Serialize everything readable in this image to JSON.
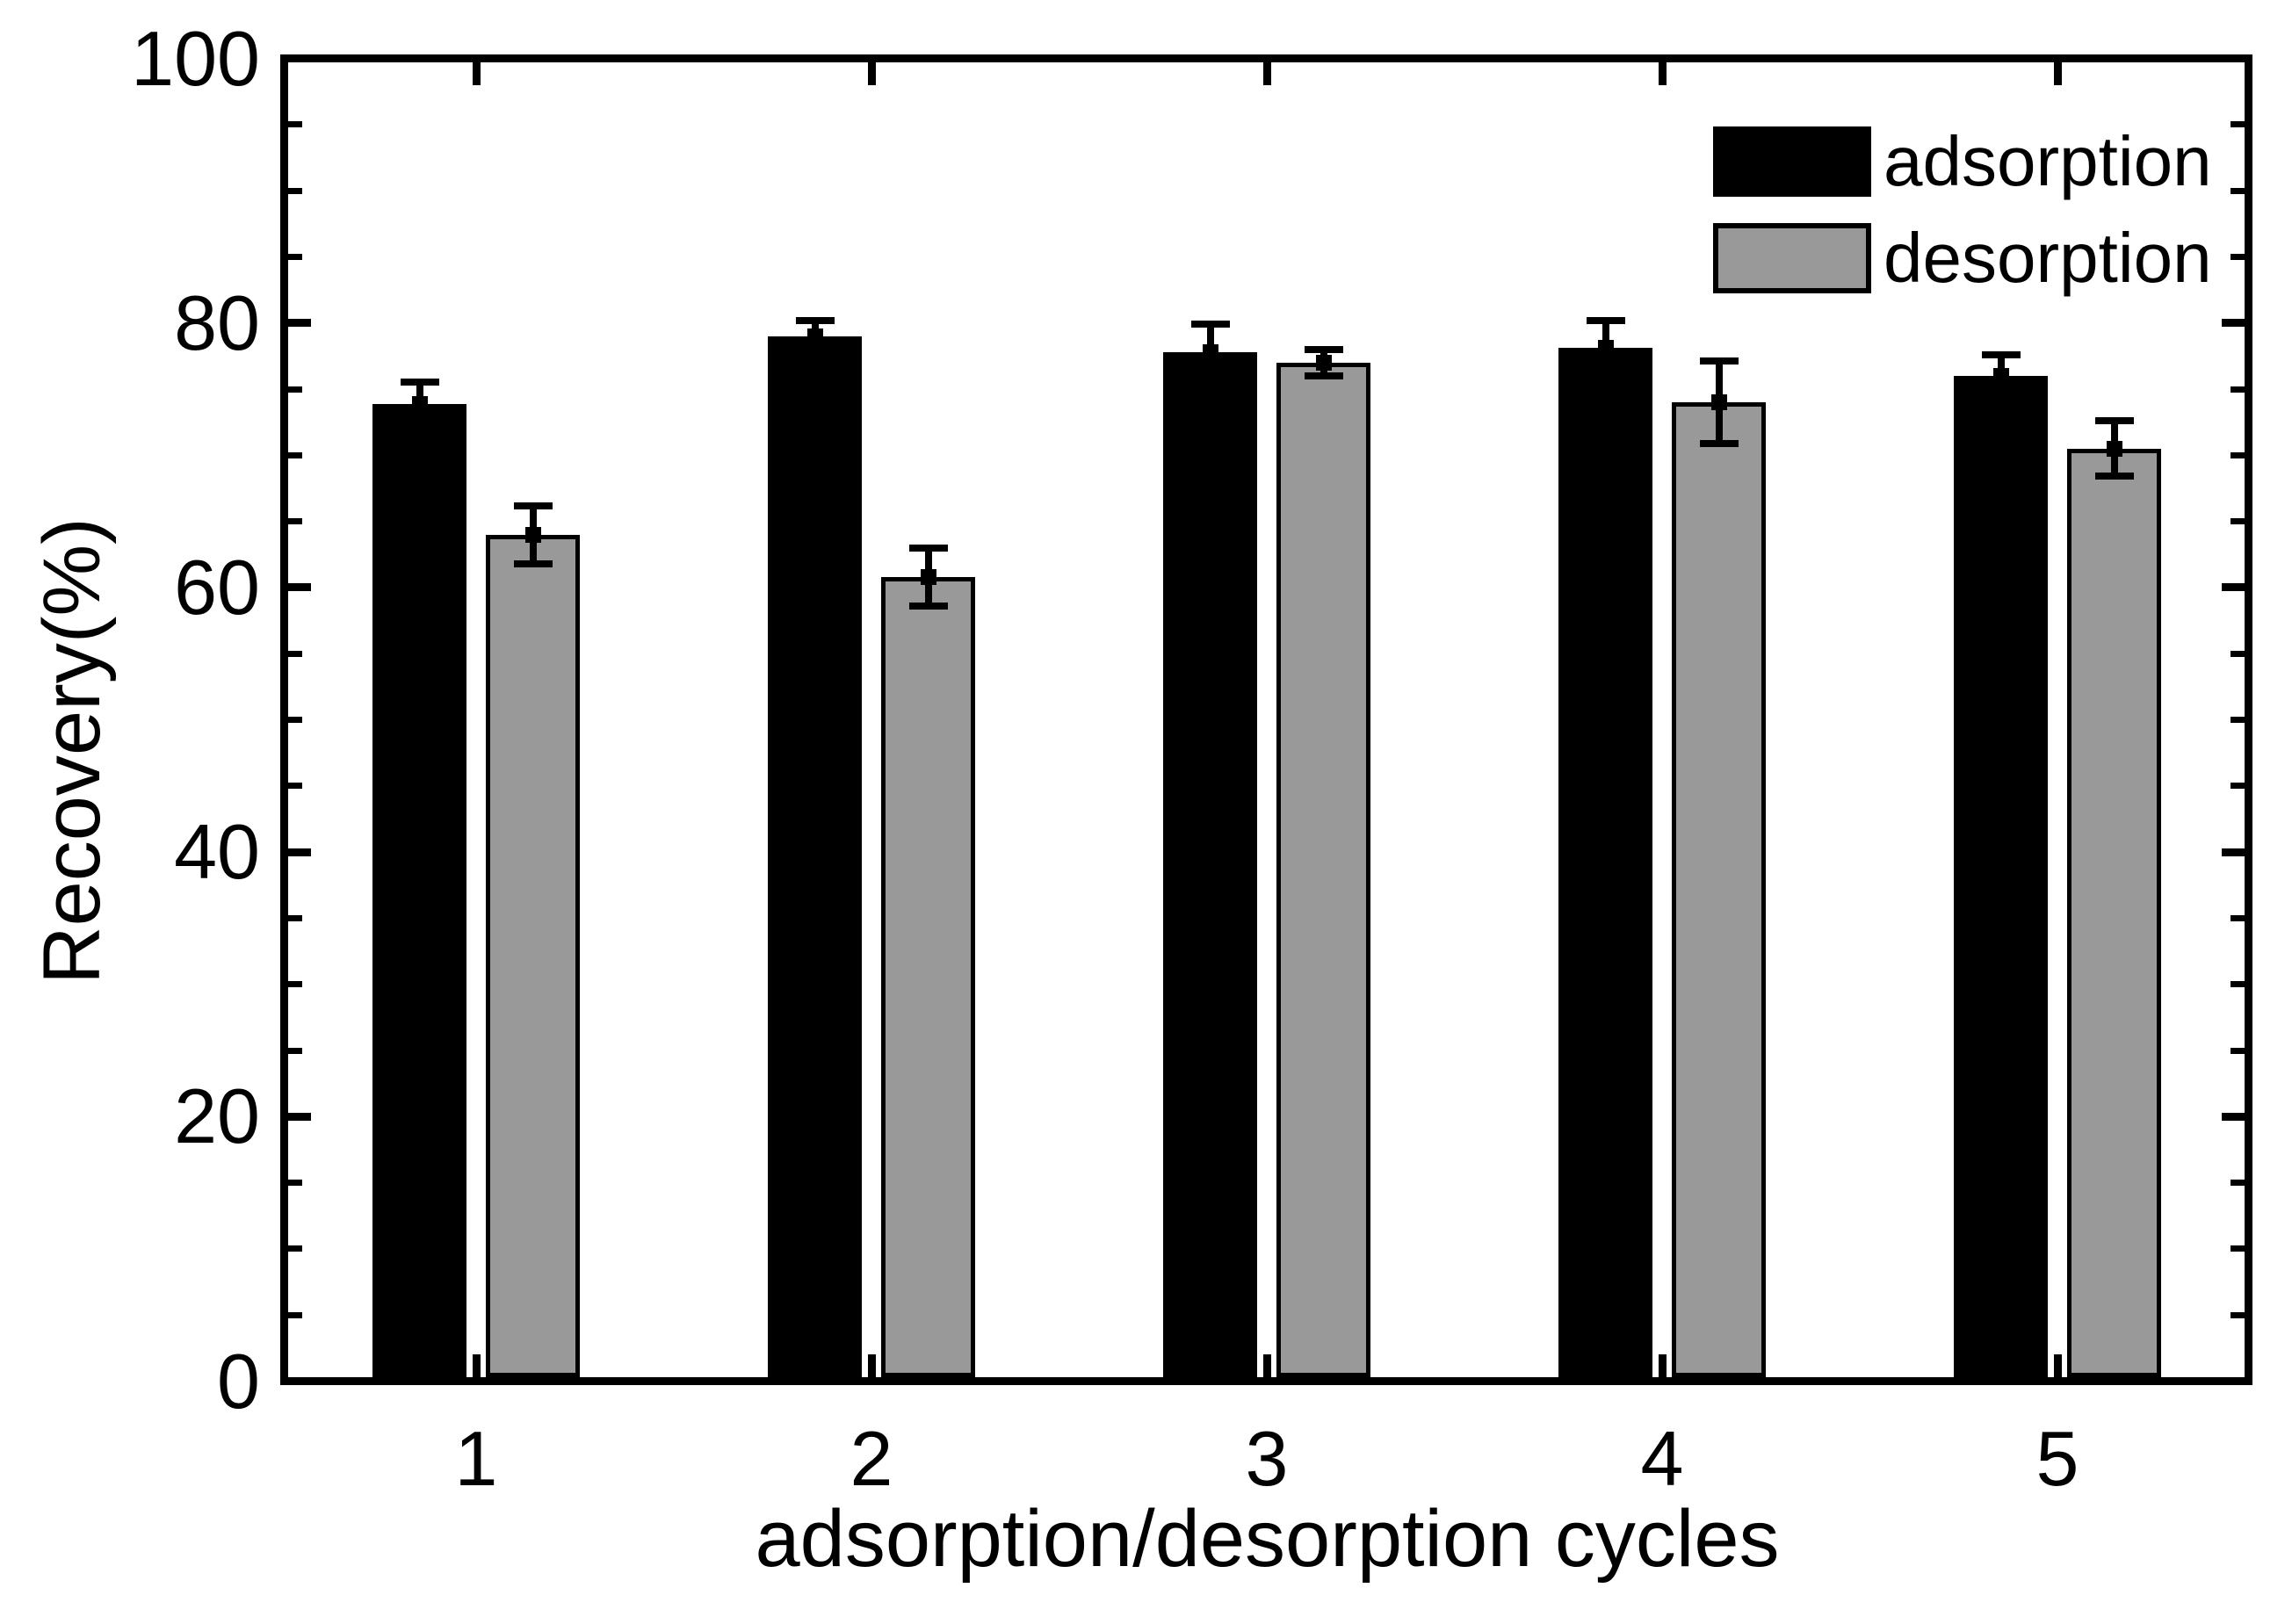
{
  "chart_data": {
    "type": "bar",
    "title": "",
    "xlabel": "adsorption/desorption cycles",
    "ylabel": "Recovery(%)",
    "categories": [
      "1",
      "2",
      "3",
      "4",
      "5"
    ],
    "ylim": [
      0,
      100
    ],
    "y_major_ticks": [
      0,
      20,
      40,
      60,
      80,
      100
    ],
    "y_minor_tick_step": 5,
    "grid": false,
    "legend_position": "top-right",
    "error_bars": true,
    "colors": {
      "adsorption": "#000000",
      "desorption": "#999999",
      "axis": "#000000",
      "background": "#ffffff"
    },
    "series": [
      {
        "name": "adsorption",
        "color": "#000000",
        "values": [
          73.9,
          79.0,
          77.8,
          78.1,
          76.0
        ],
        "errors": [
          1.6,
          1.2,
          2.1,
          2.1,
          1.6
        ]
      },
      {
        "name": "desorption",
        "color": "#999999",
        "values": [
          64.0,
          60.8,
          77.0,
          74.0,
          70.5
        ],
        "errors": [
          2.2,
          2.2,
          1.0,
          3.1,
          2.1
        ]
      }
    ]
  }
}
